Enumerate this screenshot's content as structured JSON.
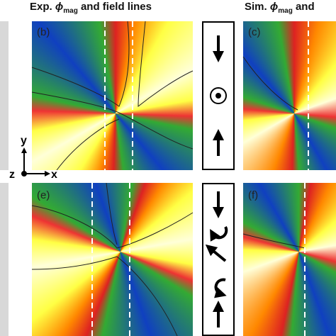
{
  "header": {
    "left": {
      "prefix": "Exp. ",
      "symbol": "ϕ",
      "subscript": "mag",
      "suffix": " and field lines"
    },
    "right": {
      "prefix": "Sim. ",
      "symbol": "ϕ",
      "subscript": "mag",
      "suffix": " and"
    }
  },
  "panels": [
    {
      "label": "(b)"
    },
    {
      "label": "(c)"
    },
    {
      "label": "(e)"
    },
    {
      "label": "(f)"
    }
  ],
  "axes": {
    "y": "y",
    "z": "z",
    "x": "x"
  }
}
